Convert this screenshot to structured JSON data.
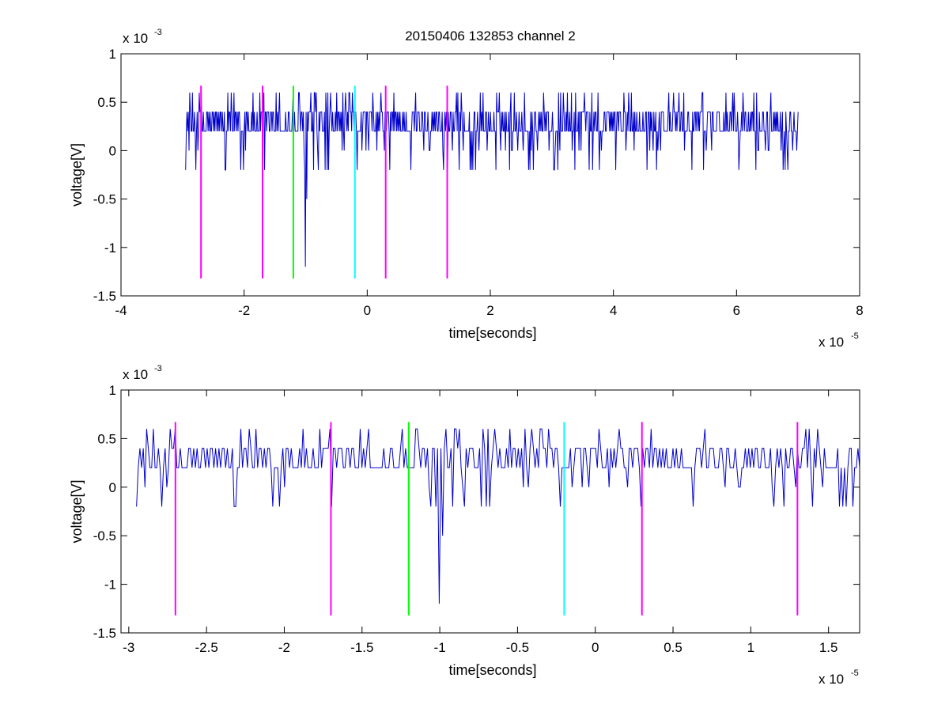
{
  "figure": {
    "title": "20150406 132853 channel 2"
  },
  "chart_data": [
    {
      "type": "line",
      "title": "20150406 132853 channel 2",
      "xlabel": "time[seconds]",
      "ylabel": "voltage[V]",
      "x_exponent_label": "x 10",
      "x_exponent": "-5",
      "y_exponent_label": "x 10",
      "y_exponent": "-3",
      "xlim": [
        -4,
        8
      ],
      "ylim": [
        -1.5,
        1
      ],
      "xticks": [
        -4,
        -2,
        0,
        2,
        4,
        6,
        8
      ],
      "xtick_labels": [
        "-4",
        "-2",
        "0",
        "2",
        "4",
        "6",
        "8"
      ],
      "yticks": [
        -1.5,
        -1,
        -0.5,
        0,
        0.5,
        1
      ],
      "ytick_labels": [
        "-1.5",
        "-1",
        "-0.5",
        "0",
        "0.5",
        "1"
      ],
      "grid": false,
      "signal": {
        "color": "#0000cc",
        "x_start": -2.95,
        "x_end": 7.0,
        "levels": [
          0,
          0.2,
          0.4,
          0.6
        ],
        "spikes": [
          [
            -1.0,
            -1.2
          ],
          [
            -0.98,
            -0.5
          ]
        ]
      },
      "markers": [
        {
          "x": -2.7,
          "color": "#ff00ff",
          "y_range": [
            -1.32,
            0.67
          ]
        },
        {
          "x": -1.7,
          "color": "#ff00ff",
          "y_range": [
            -1.32,
            0.67
          ]
        },
        {
          "x": -1.2,
          "color": "#00ff00",
          "y_range": [
            -1.32,
            0.67
          ]
        },
        {
          "x": -0.2,
          "color": "#00ffff",
          "y_range": [
            -1.32,
            0.67
          ]
        },
        {
          "x": 0.3,
          "color": "#ff00ff",
          "y_range": [
            -1.32,
            0.67
          ]
        },
        {
          "x": 1.3,
          "color": "#ff00ff",
          "y_range": [
            -1.32,
            0.67
          ]
        }
      ]
    },
    {
      "type": "line",
      "title": "",
      "xlabel": "time[seconds]",
      "ylabel": "voltage[V]",
      "x_exponent_label": "x 10",
      "x_exponent": "-5",
      "y_exponent_label": "x 10",
      "y_exponent": "-3",
      "xlim": [
        -3.05,
        1.7
      ],
      "ylim": [
        -1.5,
        1
      ],
      "xticks": [
        -3,
        -2.5,
        -2,
        -1.5,
        -1,
        -0.5,
        0,
        0.5,
        1,
        1.5
      ],
      "xtick_labels": [
        "-3",
        "-2.5",
        "-2",
        "-1.5",
        "-1",
        "-0.5",
        "0",
        "0.5",
        "1",
        "1.5"
      ],
      "yticks": [
        -1.5,
        -1,
        -0.5,
        0,
        0.5,
        1
      ],
      "ytick_labels": [
        "-1.5",
        "-1",
        "-0.5",
        "0",
        "0.5",
        "1"
      ],
      "grid": false,
      "signal": {
        "color": "#0000cc",
        "x_start": -2.95,
        "x_end": 1.7,
        "levels": [
          0,
          0.2,
          0.4,
          0.6
        ],
        "spikes": [
          [
            -1.0,
            -1.2
          ],
          [
            -0.98,
            -0.5
          ]
        ]
      },
      "markers": [
        {
          "x": -2.7,
          "color": "#ff00ff",
          "y_range": [
            -1.32,
            0.67
          ]
        },
        {
          "x": -1.7,
          "color": "#ff00ff",
          "y_range": [
            -1.32,
            0.67
          ]
        },
        {
          "x": -1.2,
          "color": "#00ff00",
          "y_range": [
            -1.32,
            0.67
          ]
        },
        {
          "x": -0.2,
          "color": "#00ffff",
          "y_range": [
            -1.32,
            0.67
          ]
        },
        {
          "x": 0.3,
          "color": "#ff00ff",
          "y_range": [
            -1.32,
            0.67
          ]
        },
        {
          "x": 1.3,
          "color": "#ff00ff",
          "y_range": [
            -1.32,
            0.67
          ]
        }
      ]
    }
  ]
}
